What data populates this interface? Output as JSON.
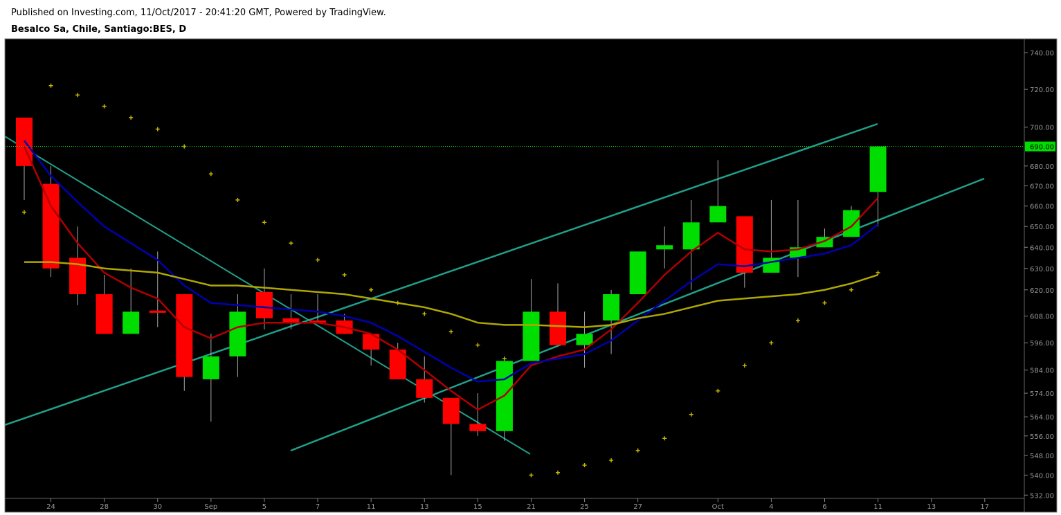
{
  "chart_data": {
    "type": "candlestick",
    "subtitle": "Published on Investing.com, 11/Oct/2017 - 20:41:20 GMT, Powered by TradingView.",
    "title": "Besalco Sa, Chile, Santiago:BES, D",
    "categories": [
      null,
      "24",
      null,
      "28",
      null,
      "30",
      null,
      "Sep",
      null,
      "5",
      null,
      "7",
      null,
      "11",
      null,
      "13",
      null,
      "15",
      null,
      "21",
      null,
      "25",
      null,
      "27",
      null,
      null,
      "Oct",
      null,
      "4",
      null,
      "6",
      null,
      "11",
      null,
      "13",
      null,
      "17"
    ],
    "open": [
      705,
      671,
      635,
      618,
      600,
      610.5,
      618,
      580,
      590,
      619,
      607,
      606,
      606,
      600,
      593,
      580,
      572,
      561,
      558,
      588,
      610,
      595,
      606,
      618,
      639,
      639,
      652,
      655,
      628,
      635,
      640,
      645,
      667,
      null,
      null,
      null,
      null
    ],
    "high": [
      705,
      680,
      650,
      627,
      630,
      638,
      618,
      600,
      618,
      630,
      618,
      618,
      609,
      600,
      596,
      590,
      572,
      574,
      588,
      625,
      623,
      610,
      620,
      638,
      650,
      663,
      683,
      655,
      663,
      663,
      649,
      660,
      690,
      null,
      null,
      null,
      null
    ],
    "low": [
      663,
      626,
      613,
      600,
      600,
      603,
      575,
      562,
      581,
      602,
      602,
      605,
      600,
      586,
      580,
      570,
      540,
      556,
      554,
      588,
      595,
      585,
      591,
      618,
      630,
      620,
      652,
      621,
      628,
      626,
      640,
      645,
      650,
      null,
      null,
      null,
      null
    ],
    "close": [
      680,
      630,
      618,
      600,
      610,
      609.5,
      581,
      590,
      610,
      607,
      605,
      605,
      600,
      593,
      580,
      572,
      561,
      558,
      588,
      610,
      595,
      600,
      618,
      638,
      641,
      652,
      660,
      628,
      635,
      640,
      645,
      658,
      690,
      null,
      null,
      null,
      null
    ],
    "up_color": "#00dd00",
    "down_color": "#ff0000",
    "series": [
      {
        "color": "#b00000",
        "values": [
          690,
          660,
          642,
          628,
          621,
          616,
          603,
          598,
          603,
          605,
          605,
          605,
          603,
          600,
          593,
          584,
          575,
          567,
          573,
          586,
          590,
          593,
          602,
          614,
          627,
          638,
          647,
          639,
          638,
          639,
          643,
          650,
          664,
          null,
          null,
          null,
          null
        ]
      },
      {
        "color": "#0000b0",
        "values": [
          693,
          675,
          662,
          650,
          642,
          634,
          622,
          614,
          613,
          612,
          611,
          610,
          608,
          605,
          599,
          592,
          585,
          579,
          580,
          587,
          589,
          591,
          597,
          606,
          615,
          624,
          632,
          631,
          633,
          635,
          637,
          641,
          651,
          null,
          null,
          null,
          null
        ]
      },
      {
        "color": "#b0a800",
        "values": [
          633,
          633,
          632,
          630,
          629,
          628,
          625,
          622,
          622,
          621,
          620,
          619,
          618,
          616,
          614,
          612,
          609,
          605,
          604,
          604,
          603.5,
          603,
          604,
          607,
          609,
          612,
          615,
          616,
          617,
          618,
          620,
          623,
          627,
          null,
          null,
          null,
          null
        ]
      }
    ],
    "sar": {
      "color": "#c8b400",
      "values": [
        657,
        722,
        717,
        711,
        705,
        699,
        690,
        676,
        663,
        652,
        642,
        634,
        627,
        620,
        614,
        609,
        601,
        595,
        589,
        540,
        541,
        544,
        546,
        550,
        555,
        565,
        575,
        586,
        596,
        606,
        614,
        620,
        628,
        null,
        null,
        null,
        null
      ]
    },
    "log_scale": true,
    "ylim": [
      530.7,
      747.7
    ],
    "yticks": [
      {
        "value": 532,
        "label": "532.00"
      },
      {
        "value": 540,
        "label": "540.00"
      },
      {
        "value": 548,
        "label": "548.00"
      },
      {
        "value": 556,
        "label": "556.00"
      },
      {
        "value": 564,
        "label": "564.00"
      },
      {
        "value": 574,
        "label": "574.00"
      },
      {
        "value": 584,
        "label": "584.00"
      },
      {
        "value": 596,
        "label": "596.00"
      },
      {
        "value": 608,
        "label": "608.00"
      },
      {
        "value": 620,
        "label": "620.00"
      },
      {
        "value": 630,
        "label": "630.00"
      },
      {
        "value": 640,
        "label": "640.00"
      },
      {
        "value": 650,
        "label": "650.00"
      },
      {
        "value": 660,
        "label": "660.00"
      },
      {
        "value": 670,
        "label": "670.00"
      },
      {
        "value": 680,
        "label": "680.00"
      },
      {
        "value": 700,
        "label": "700.00"
      },
      {
        "value": 720,
        "label": "720.00"
      },
      {
        "value": 740,
        "label": "740.00"
      }
    ],
    "last_price": {
      "value": 690,
      "label": "690.00",
      "color": "#00dd00"
    }
  }
}
